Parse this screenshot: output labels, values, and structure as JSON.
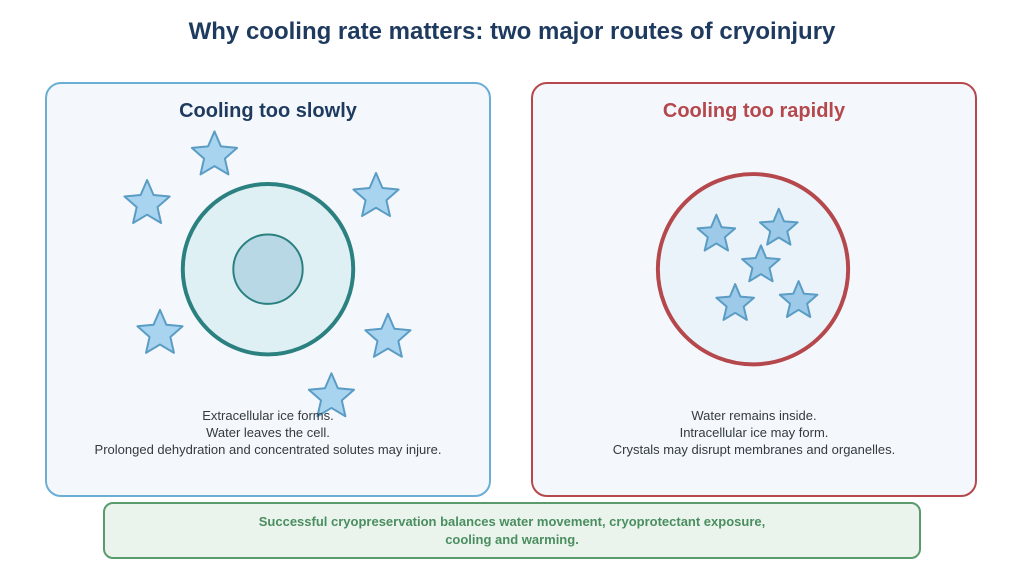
{
  "title": "Why cooling rate matters: two major routes of cryoinjury",
  "left_panel": {
    "heading": "Cooling too slowly",
    "lines": [
      "Extracellular ice forms.",
      "Water leaves the cell.",
      "Prolonged dehydration and concentrated solutes may injure."
    ],
    "border_color": "#6aaed6",
    "cell_color": "#2b8080",
    "ice_color": "#a8d4f0"
  },
  "right_panel": {
    "heading": "Cooling too rapidly",
    "lines": [
      "Water remains inside.",
      "Intracellular ice may form.",
      "Crystals may disrupt membranes and organelles."
    ],
    "border_color": "#b5484c",
    "ice_color": "#9ccae8"
  },
  "note": {
    "line1": "Successful cryopreservation balances water movement, cryoprotectant exposure,",
    "line2": "cooling and warming."
  }
}
